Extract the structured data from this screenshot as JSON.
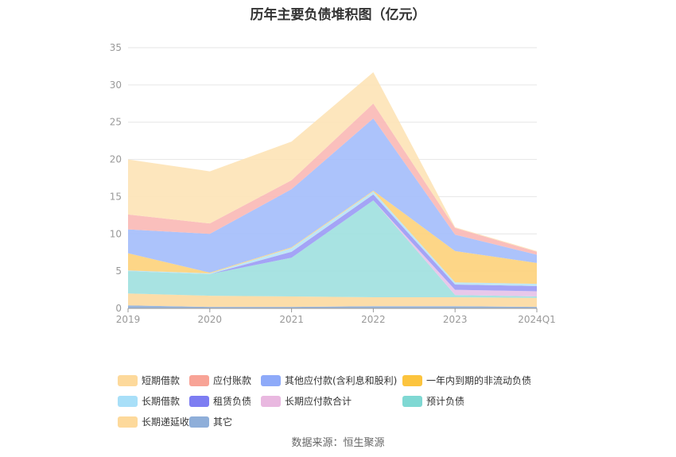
{
  "chart_data": {
    "type": "area",
    "stacked": true,
    "title": "历年主要负债堆积图（亿元）",
    "categories": [
      "2019",
      "2020",
      "2021",
      "2022",
      "2023",
      "2024Q1"
    ],
    "ylim": [
      0,
      35
    ],
    "yticks": [
      0,
      5,
      10,
      15,
      20,
      25,
      30,
      35
    ],
    "grid": true,
    "legend_position": "bottom",
    "series": [
      {
        "name": "其它",
        "color": "#8eaed9",
        "values": [
          0.4,
          0.2,
          0.2,
          0.3,
          0.3,
          0.2
        ]
      },
      {
        "name": "长期递延收益",
        "color": "#fcd9a0",
        "values": [
          1.6,
          1.5,
          1.4,
          1.2,
          1.2,
          1.2
        ]
      },
      {
        "name": "预计负债",
        "color": "#9ee0df",
        "values": [
          3.0,
          2.9,
          5.2,
          13.0,
          0.3,
          0.2
        ]
      },
      {
        "name": "长期应付款合计",
        "color": "#e5c2e8",
        "values": [
          0,
          0,
          0,
          0,
          0.7,
          0.7
        ]
      },
      {
        "name": "租赁负债",
        "color": "#9a9af5",
        "values": [
          0,
          0,
          0.8,
          0.8,
          0.7,
          0.7
        ]
      },
      {
        "name": "长期借款",
        "color": "#b8e3f5",
        "values": [
          0.1,
          0.1,
          0.5,
          0.4,
          0.3,
          0.3
        ]
      },
      {
        "name": "一年内到期的非流动负债",
        "color": "#fdd27a",
        "values": [
          2.3,
          0.1,
          0.1,
          0.1,
          4.2,
          2.8
        ]
      },
      {
        "name": "其他应付款(含利息和股利)",
        "color": "#a3bdfb",
        "values": [
          3.2,
          5.2,
          7.8,
          9.7,
          2.2,
          1.1
        ]
      },
      {
        "name": "应付账款",
        "color": "#f9b8b5",
        "values": [
          2.0,
          1.4,
          1.2,
          2.0,
          0.9,
          0.4
        ]
      },
      {
        "name": "短期借款",
        "color": "#fde3b6",
        "values": [
          7.4,
          7.0,
          5.2,
          4.2,
          0.1,
          0.1
        ]
      }
    ]
  },
  "legend": [
    {
      "label": "短期借款",
      "color": "#fdd99b"
    },
    {
      "label": "应付账款",
      "color": "#f8a396"
    },
    {
      "label": "其他应付款(含利息和股利)",
      "color": "#8eaaf9"
    },
    {
      "label": "一年内到期的非流动负债",
      "color": "#fcc43e"
    },
    {
      "label": "长期借款",
      "color": "#a8dff8"
    },
    {
      "label": "租赁负债",
      "color": "#7d7df2"
    },
    {
      "label": "长期应付款合计",
      "color": "#e9b8e0"
    },
    {
      "label": "预计负债",
      "color": "#7fd8d3"
    },
    {
      "label": "长期递延收益",
      "color": "#fdd99b"
    },
    {
      "label": "其它",
      "color": "#8eaed9"
    }
  ],
  "source": "数据来源：恒生聚源"
}
